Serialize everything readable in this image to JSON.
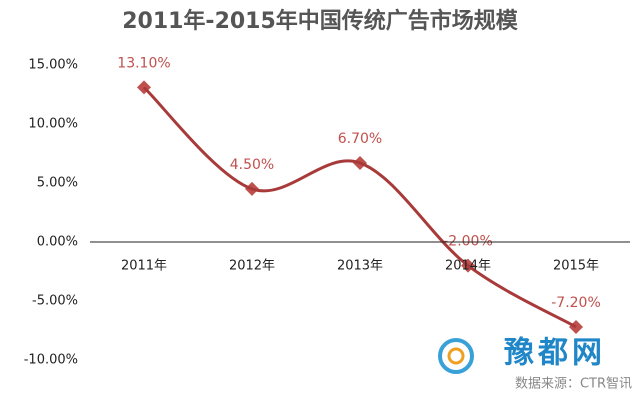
{
  "chart_data": {
    "type": "line",
    "title": "2011年-2015年中国传统广告市场规模",
    "categories": [
      "2011年",
      "2012年",
      "2013年",
      "2014年",
      "2015年"
    ],
    "values": [
      13.1,
      4.5,
      6.7,
      -2.0,
      -7.2
    ],
    "value_labels": [
      "13.10%",
      "4.50%",
      "6.70%",
      "-2.00%",
      "-7.20%"
    ],
    "color": "#a83a3a",
    "label_color": "#c0504d",
    "smooth": true,
    "ylim": [
      -10,
      15
    ],
    "yticks": [
      {
        "value": -10,
        "label": "-10.00%"
      },
      {
        "value": -5,
        "label": "-5.00%"
      },
      {
        "value": 0,
        "label": "0.00%"
      },
      {
        "value": 5,
        "label": "5.00%"
      },
      {
        "value": 10,
        "label": "10.00%"
      },
      {
        "value": 15,
        "label": "15.00%"
      }
    ]
  },
  "watermark": "豫都网",
  "source": "数据来源：CTR智讯"
}
